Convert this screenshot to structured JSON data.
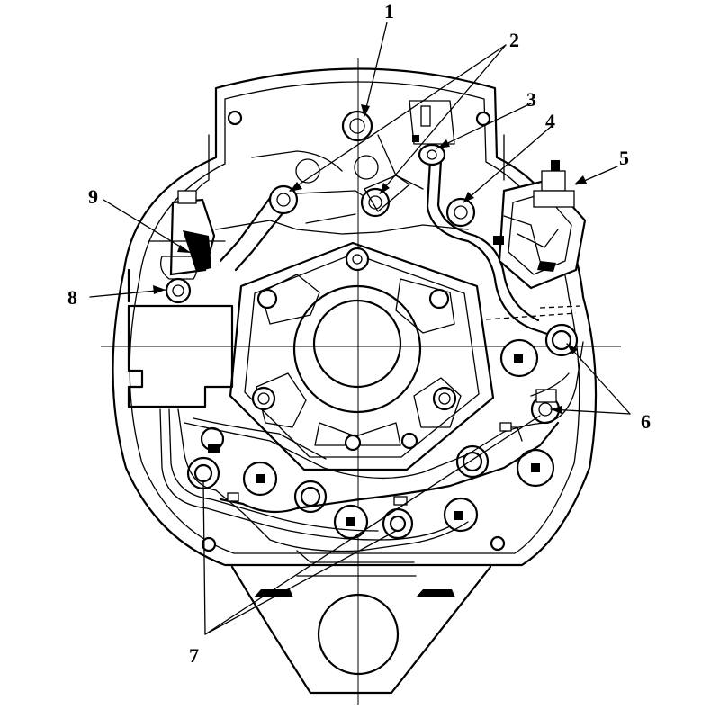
{
  "callouts": [
    {
      "id": "1",
      "label": "1"
    },
    {
      "id": "2",
      "label": "2"
    },
    {
      "id": "3",
      "label": "3"
    },
    {
      "id": "4",
      "label": "4"
    },
    {
      "id": "5",
      "label": "5"
    },
    {
      "id": "6",
      "label": "6"
    },
    {
      "id": "7",
      "label": "7"
    },
    {
      "id": "8",
      "label": "8"
    },
    {
      "id": "9",
      "label": "9"
    }
  ]
}
